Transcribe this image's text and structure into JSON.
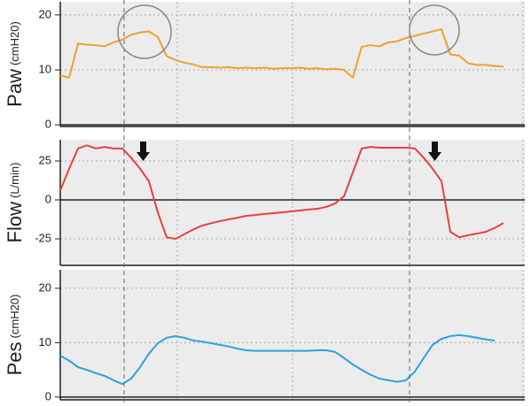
{
  "chart_data": [
    {
      "type": "line",
      "ylabel": "Paw",
      "ylabel_unit": "(cmH20)",
      "color": "#f0a030",
      "grid": true,
      "ylim": [
        -0.3,
        22.4
      ],
      "yticks": [
        0,
        10,
        20
      ],
      "values": [
        9,
        8.6,
        14.8,
        14.6,
        14.5,
        14.3,
        15,
        15.5,
        16.4,
        16.8,
        17,
        16,
        12.5,
        11.8,
        11.3,
        11,
        10.5,
        10.5,
        10.4,
        10.5,
        10.3,
        10.4,
        10.3,
        10.4,
        10.2,
        10.3,
        10.3,
        10.4,
        10.2,
        10.3,
        10.1,
        10.2,
        10,
        8.6,
        14.2,
        14.5,
        14.3,
        15,
        15.2,
        15.8,
        16.2,
        16.6,
        17,
        17.4,
        12.8,
        12.6,
        11.2,
        10.9,
        10.9,
        10.7,
        10.6
      ]
    },
    {
      "type": "line",
      "ylabel": "Flow",
      "ylabel_unit": "(L/min)",
      "color": "#e8413c",
      "grid": true,
      "ylim": [
        -42,
        38.6
      ],
      "yticks": [
        -25,
        0,
        25
      ],
      "values": [
        6,
        20,
        33,
        35,
        33,
        34,
        33,
        33,
        27,
        20,
        12,
        -8,
        -24,
        -25,
        -22,
        -19,
        -16.5,
        -15,
        -13.6,
        -12.5,
        -11.4,
        -10.2,
        -9.7,
        -9,
        -8.5,
        -8,
        -7.4,
        -6.8,
        -6.2,
        -5.7,
        -4.5,
        -2.3,
        2.3,
        17.6,
        33,
        34,
        33.5,
        33.5,
        33.5,
        33.5,
        33,
        27,
        20,
        12,
        -20.5,
        -24,
        -22.7,
        -21.6,
        -20.5,
        -18,
        -14.8
      ]
    },
    {
      "type": "line",
      "ylabel": "Pes",
      "ylabel_unit": "(cmH20)",
      "color": "#29a3e0",
      "grid": true,
      "ylim": [
        -0.5,
        23.4
      ],
      "yticks": [
        0,
        10,
        20
      ],
      "values": [
        7.6,
        6.7,
        5.5,
        5,
        4.4,
        3.9,
        3.1,
        2.4,
        3.4,
        5.5,
        8,
        9.9,
        10.9,
        11.2,
        10.9,
        10.4,
        10.2,
        9.9,
        9.6,
        9.3,
        8.9,
        8.6,
        8.5,
        8.5,
        8.5,
        8.5,
        8.5,
        8.5,
        8.5,
        8.6,
        8.6,
        8.3,
        7.2,
        6,
        5,
        4.1,
        3.4,
        3.1,
        2.8,
        3.1,
        4.7,
        7.2,
        9.6,
        10.7,
        11.2,
        11.4,
        11.2,
        10.9,
        10.6,
        10.4
      ]
    }
  ]
}
